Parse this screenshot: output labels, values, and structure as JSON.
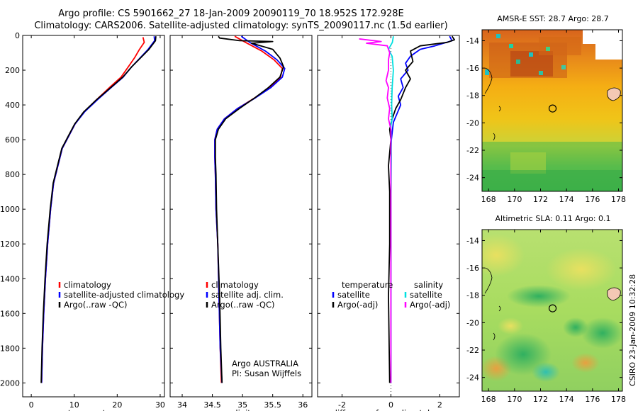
{
  "title": {
    "line1": "Argo profile: CS 5901662_27 18-Jan-2009 20090119_70 18.952S 172.928E",
    "line2": "Climatology: CARS2006. Satellite-adjusted climatology: synTS_20090117.nc (1.5d earlier)"
  },
  "side_text": "CSIRO 23-Jan-2009 10:32:28",
  "chart_data": [
    {
      "id": "temperature",
      "type": "line",
      "xlabel": "temperature",
      "ylabel": "",
      "xlim": [
        -2,
        31
      ],
      "ylim": [
        2080,
        0
      ],
      "xticks": [
        0,
        10,
        20,
        30
      ],
      "yticks": [
        0,
        200,
        400,
        600,
        800,
        1000,
        1200,
        1400,
        1600,
        1800,
        2000
      ],
      "legend": {
        "placement": "lower-left",
        "entries": [
          "climatology",
          "satellite-adjusted climatology",
          "Argo(..raw -QC)"
        ]
      },
      "series": [
        {
          "name": "climatology",
          "color": "#ff0000",
          "points": [
            [
              26,
              10
            ],
            [
              26.3,
              40
            ],
            [
              25.2,
              80
            ],
            [
              24,
              130
            ],
            [
              22.6,
              180
            ],
            [
              20.9,
              240
            ],
            [
              18.2,
              300
            ],
            [
              15.2,
              370
            ],
            [
              12.3,
              440
            ],
            [
              10.2,
              510
            ],
            [
              8.9,
              570
            ],
            [
              7.2,
              650
            ],
            [
              6.2,
              750
            ],
            [
              5.2,
              850
            ],
            [
              4.5,
              1000
            ],
            [
              3.8,
              1200
            ],
            [
              3.3,
              1400
            ],
            [
              2.9,
              1600
            ],
            [
              2.6,
              1800
            ],
            [
              2.4,
              2000
            ]
          ]
        },
        {
          "name": "satellite-adjusted",
          "color": "#0000ff",
          "points": [
            [
              28.6,
              5
            ],
            [
              28.7,
              30
            ],
            [
              27.2,
              80
            ],
            [
              25.3,
              130
            ],
            [
              23.4,
              180
            ],
            [
              21.4,
              240
            ],
            [
              18.6,
              300
            ],
            [
              15.4,
              370
            ],
            [
              12.4,
              440
            ],
            [
              10.2,
              510
            ],
            [
              8.9,
              570
            ],
            [
              7.2,
              650
            ],
            [
              6.2,
              750
            ],
            [
              5.2,
              850
            ],
            [
              4.5,
              1000
            ],
            [
              3.8,
              1200
            ],
            [
              3.3,
              1400
            ],
            [
              2.9,
              1600
            ],
            [
              2.6,
              1800
            ],
            [
              2.4,
              2000
            ]
          ]
        },
        {
          "name": "Argo",
          "color": "#000000",
          "points": [
            [
              29,
              5
            ],
            [
              28.9,
              30
            ],
            [
              27.4,
              80
            ],
            [
              25.4,
              130
            ],
            [
              23.4,
              180
            ],
            [
              21.3,
              240
            ],
            [
              18.5,
              300
            ],
            [
              15.2,
              370
            ],
            [
              12.2,
              440
            ],
            [
              10.1,
              510
            ],
            [
              8.8,
              570
            ],
            [
              7.1,
              650
            ],
            [
              6.1,
              750
            ],
            [
              5.1,
              850
            ],
            [
              4.4,
              1000
            ],
            [
              3.7,
              1200
            ],
            [
              3.2,
              1400
            ],
            [
              2.8,
              1600
            ],
            [
              2.5,
              1800
            ],
            [
              2.3,
              2000
            ]
          ]
        }
      ]
    },
    {
      "id": "salinity",
      "type": "line",
      "xlabel": "salinity",
      "ylabel": "",
      "xlim": [
        33.8,
        36.15
      ],
      "ylim": [
        2080,
        0
      ],
      "xticks": [
        34,
        34.5,
        35,
        35.5,
        36
      ],
      "yticks": [
        0,
        200,
        400,
        600,
        800,
        1000,
        1200,
        1400,
        1600,
        1800,
        2000
      ],
      "legend": {
        "placement": "lower-left",
        "entries": [
          "climatology",
          "satellite adj. clim.",
          "Argo(..raw -QC)"
        ]
      },
      "annotation": [
        "Argo AUSTRALIA",
        "PI: Susan Wijffels"
      ],
      "series": [
        {
          "name": "climatology",
          "color": "#ff0000",
          "points": [
            [
              34.87,
              5
            ],
            [
              35.05,
              40
            ],
            [
              35.32,
              90
            ],
            [
              35.52,
              140
            ],
            [
              35.66,
              190
            ],
            [
              35.63,
              240
            ],
            [
              35.45,
              300
            ],
            [
              35.2,
              360
            ],
            [
              34.92,
              420
            ],
            [
              34.7,
              480
            ],
            [
              34.58,
              540
            ],
            [
              34.54,
              600
            ],
            [
              34.54,
              700
            ],
            [
              34.55,
              800
            ],
            [
              34.56,
              1000
            ],
            [
              34.59,
              1200
            ],
            [
              34.61,
              1500
            ],
            [
              34.63,
              1800
            ],
            [
              34.65,
              2000
            ]
          ]
        },
        {
          "name": "satellite adj.",
          "color": "#0000ff",
          "points": [
            [
              34.98,
              5
            ],
            [
              35.12,
              40
            ],
            [
              35.38,
              90
            ],
            [
              35.57,
              140
            ],
            [
              35.7,
              190
            ],
            [
              35.66,
              240
            ],
            [
              35.47,
              300
            ],
            [
              35.21,
              360
            ],
            [
              34.92,
              420
            ],
            [
              34.7,
              480
            ],
            [
              34.58,
              540
            ],
            [
              34.54,
              600
            ],
            [
              34.54,
              700
            ],
            [
              34.55,
              800
            ],
            [
              34.56,
              1000
            ],
            [
              34.59,
              1200
            ],
            [
              34.61,
              1500
            ],
            [
              34.63,
              1800
            ],
            [
              34.66,
              2000
            ]
          ]
        },
        {
          "name": "Argo",
          "color": "#000000",
          "points": [
            [
              34.6,
              5
            ],
            [
              34.62,
              15
            ],
            [
              34.95,
              30
            ],
            [
              35.5,
              35
            ],
            [
              35.15,
              45
            ],
            [
              35.5,
              80
            ],
            [
              35.62,
              130
            ],
            [
              35.68,
              180
            ],
            [
              35.62,
              240
            ],
            [
              35.43,
              300
            ],
            [
              35.2,
              360
            ],
            [
              34.95,
              420
            ],
            [
              34.72,
              480
            ],
            [
              34.6,
              540
            ],
            [
              34.55,
              600
            ],
            [
              34.55,
              700
            ],
            [
              34.56,
              800
            ],
            [
              34.57,
              1000
            ],
            [
              34.59,
              1200
            ],
            [
              34.62,
              1500
            ],
            [
              34.64,
              1800
            ],
            [
              34.66,
              2000
            ]
          ]
        }
      ]
    },
    {
      "id": "difference",
      "type": "line",
      "xlabel": "difference from climatology",
      "ylabel": "",
      "xlim": [
        -3,
        2.8
      ],
      "ylim": [
        2080,
        0
      ],
      "xticks": [
        -2,
        0,
        2
      ],
      "yticks": [
        0,
        200,
        400,
        600,
        800,
        1000,
        1200,
        1400,
        1600,
        1800,
        2000
      ],
      "legend": {
        "placement": "lower-left",
        "col1": [
          "temperature",
          "satellite",
          "Argo(-adj)"
        ],
        "col2": [
          "salinity",
          "satellite",
          "Argo(-adj)"
        ]
      },
      "series": [
        {
          "name": "temperature satellite",
          "color": "#0000ff",
          "points": [
            [
              2.4,
              5
            ],
            [
              2.5,
              30
            ],
            [
              1.8,
              60
            ],
            [
              1.2,
              80
            ],
            [
              0.8,
              120
            ],
            [
              0.6,
              160
            ],
            [
              0.7,
              200
            ],
            [
              0.4,
              250
            ],
            [
              0.5,
              300
            ],
            [
              0.3,
              350
            ],
            [
              0.4,
              400
            ],
            [
              0.25,
              450
            ],
            [
              0.1,
              500
            ],
            [
              0.02,
              600
            ],
            [
              0.0,
              700
            ],
            [
              0.0,
              2000
            ]
          ]
        },
        {
          "name": "temperature Argo",
          "color": "#000000",
          "points": [
            [
              2.5,
              5
            ],
            [
              2.6,
              25
            ],
            [
              2.3,
              40
            ],
            [
              1.2,
              60
            ],
            [
              0.8,
              90
            ],
            [
              0.9,
              150
            ],
            [
              0.6,
              200
            ],
            [
              0.8,
              250
            ],
            [
              0.6,
              300
            ],
            [
              0.4,
              370
            ],
            [
              0.2,
              420
            ],
            [
              0.05,
              480
            ],
            [
              -0.05,
              540
            ],
            [
              0.0,
              600
            ],
            [
              -0.1,
              750
            ],
            [
              -0.05,
              900
            ],
            [
              -0.05,
              1200
            ],
            [
              -0.1,
              1500
            ],
            [
              -0.05,
              2000
            ]
          ]
        },
        {
          "name": "salinity satellite",
          "color": "#00e0e0",
          "points": [
            [
              0.1,
              5
            ],
            [
              0.06,
              40
            ],
            [
              -0.1,
              80
            ],
            [
              0.05,
              120
            ],
            [
              0.1,
              200
            ],
            [
              0.05,
              300
            ],
            [
              0.03,
              400
            ],
            [
              0.05,
              480
            ],
            [
              0.0,
              520
            ],
            [
              0.02,
              700
            ],
            [
              0.0,
              1000
            ],
            [
              0.0,
              2000
            ]
          ]
        },
        {
          "name": "salinity Argo",
          "color": "#ff00ff",
          "points": [
            [
              -1.3,
              20
            ],
            [
              -0.4,
              35
            ],
            [
              -1.0,
              45
            ],
            [
              -0.15,
              60
            ],
            [
              -0.05,
              100
            ],
            [
              -0.1,
              140
            ],
            [
              -0.1,
              200
            ],
            [
              -0.2,
              260
            ],
            [
              -0.1,
              300
            ],
            [
              -0.15,
              360
            ],
            [
              -0.05,
              420
            ],
            [
              -0.1,
              480
            ],
            [
              0.0,
              540
            ],
            [
              0.0,
              700
            ],
            [
              0.0,
              1000
            ],
            [
              0.0,
              2000
            ]
          ]
        }
      ]
    },
    {
      "id": "sst_map",
      "type": "heatmap",
      "title": "AMSR-E SST: 28.7 Argo: 28.7",
      "xlim": [
        167.5,
        178.3
      ],
      "ylim": [
        -25,
        -13.2
      ],
      "xticks": [
        168,
        170,
        172,
        174,
        176,
        178
      ],
      "yticks": [
        -14,
        -16,
        -18,
        -20,
        -22,
        -24
      ],
      "marker": [
        172.93,
        -18.95
      ]
    },
    {
      "id": "sla_map",
      "type": "heatmap",
      "title": "Altimetric SLA: 0.11 Argo: 0.1",
      "xlim": [
        167.5,
        178.3
      ],
      "ylim": [
        -25,
        -13.2
      ],
      "xticks": [
        168,
        170,
        172,
        174,
        176,
        178
      ],
      "yticks": [
        -14,
        -16,
        -18,
        -20,
        -22,
        -24
      ],
      "marker": [
        172.93,
        -18.95
      ]
    }
  ]
}
